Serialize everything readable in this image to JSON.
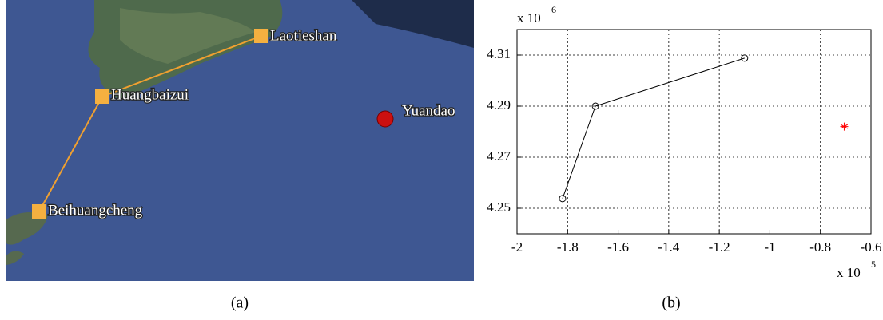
{
  "map": {
    "places": [
      {
        "name": "Laotieshan"
      },
      {
        "name": "Huangbaizui"
      },
      {
        "name": "Beihuangcheng"
      },
      {
        "name": "Yuandao"
      }
    ]
  },
  "captions": [
    "(a)",
    "(b)"
  ],
  "chart_data": {
    "type": "scatter",
    "x_multiplier": {
      "base": "x 10",
      "exponent": "5"
    },
    "y_multiplier": {
      "base": "x 10",
      "exponent": "6"
    },
    "xlim": [
      -2,
      -0.6
    ],
    "xticks": [
      -2,
      -1.8,
      -1.6,
      -1.4,
      -1.2,
      -1,
      -0.8,
      -0.6
    ],
    "ylim": [
      4.24,
      4.32
    ],
    "yticks": [
      4.25,
      4.27,
      4.29,
      4.31
    ],
    "grid": true,
    "series": [
      {
        "color": "#000000",
        "marker": "circle",
        "line": true,
        "x": [
          -1.82,
          -1.69,
          -1.1
        ],
        "values": [
          4.2538,
          4.29,
          4.3088
        ]
      },
      {
        "color": "#ff0000",
        "marker": "star",
        "line": false,
        "x": [
          -0.706
        ],
        "values": [
          4.282
        ]
      }
    ]
  }
}
